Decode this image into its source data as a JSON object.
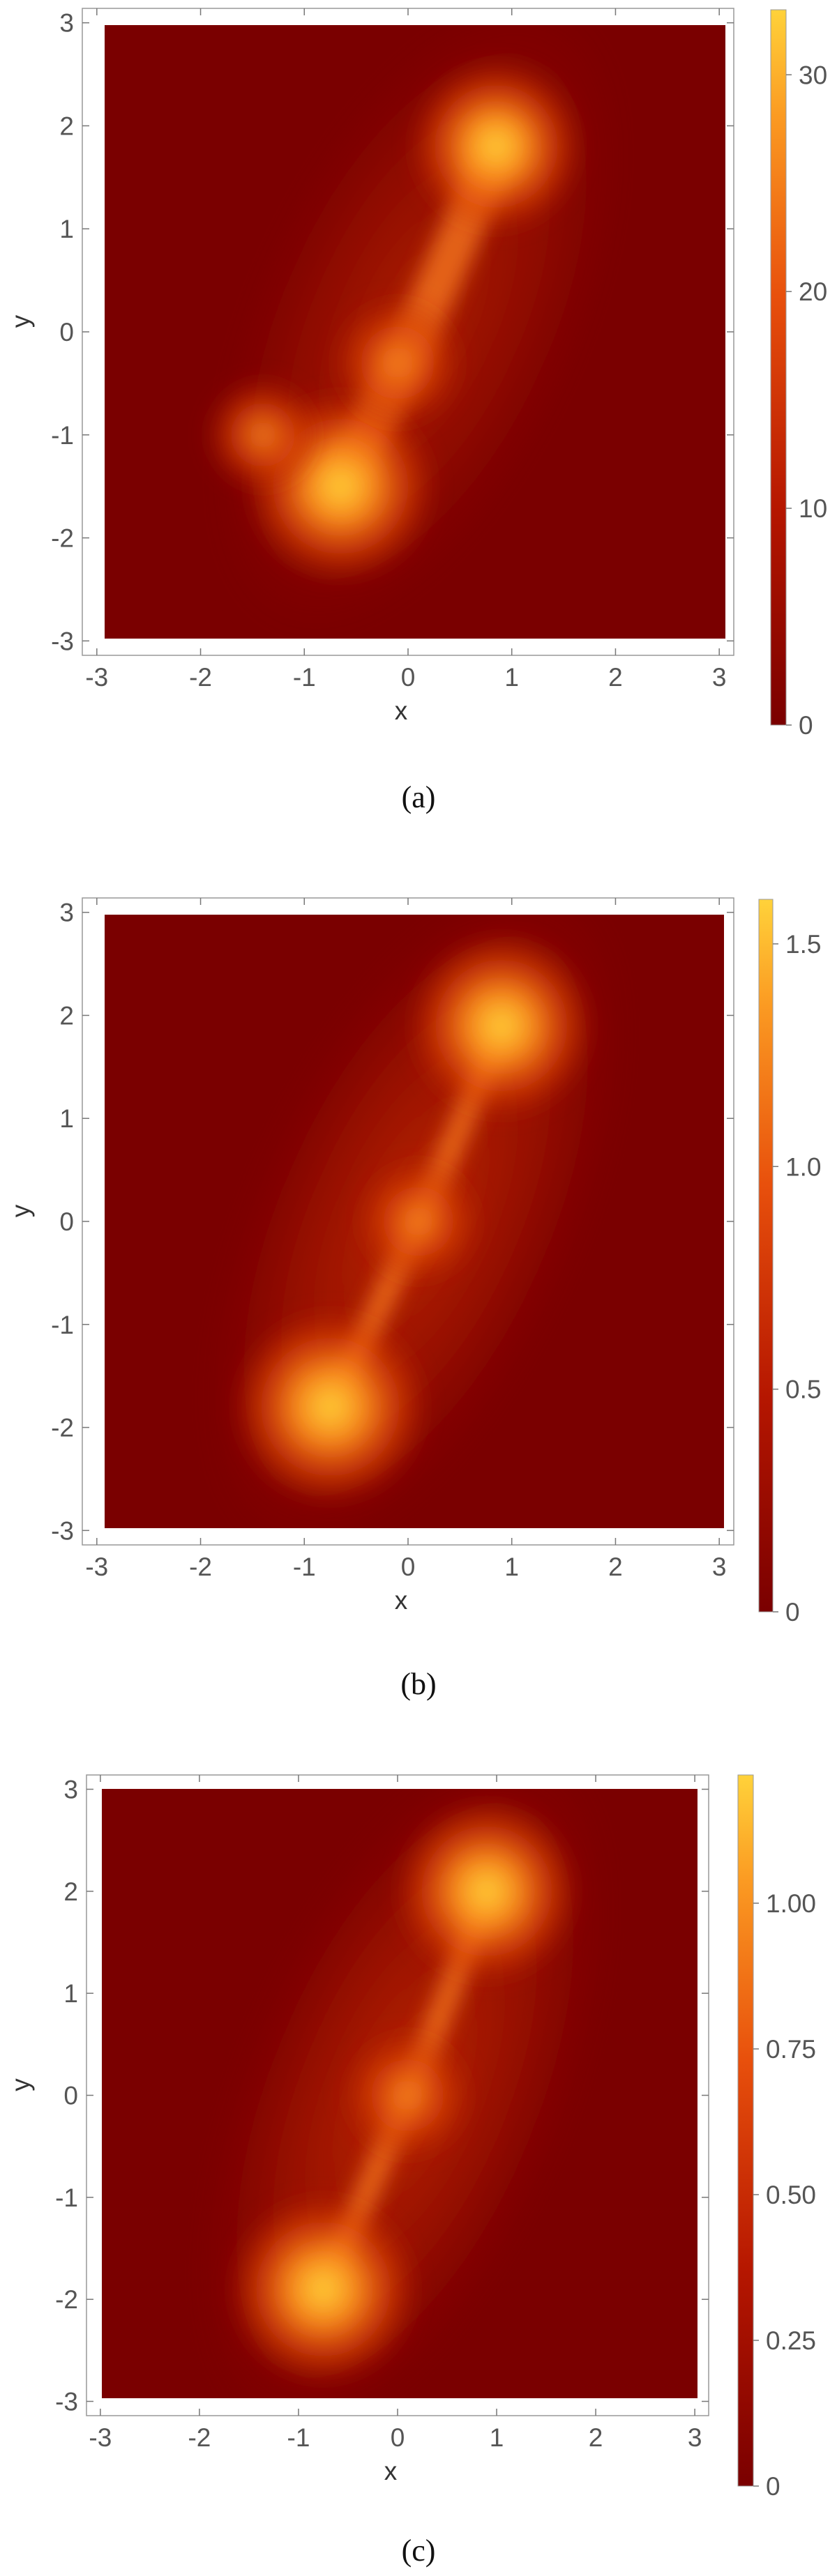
{
  "colors": {
    "background": "#7a0000",
    "colorbar_low": "#7a0000",
    "colorbar_mid": "#e0440a",
    "colorbar_high": "#ffd23a"
  },
  "chart_data": [
    {
      "type": "heatmap",
      "caption": "(a)",
      "xlabel": "x",
      "ylabel": "y",
      "xlim": [
        -3.14,
        3.14
      ],
      "ylim": [
        -3.14,
        3.14
      ],
      "xticks": [
        "-3",
        "-2",
        "-1",
        "0",
        "1",
        "2",
        "3"
      ],
      "yticks": [
        "3",
        "2",
        "1",
        "0",
        "-1",
        "-2",
        "-3"
      ],
      "colorbar": {
        "min": 0,
        "max": 33,
        "ticks": [
          "30",
          "20",
          "10",
          "0"
        ]
      },
      "features": [
        {
          "kind": "blob",
          "x": -0.65,
          "y": -1.5,
          "value": 30
        },
        {
          "kind": "blob",
          "x": 0.85,
          "y": 1.8,
          "value": 26
        },
        {
          "kind": "blob",
          "x": -0.1,
          "y": -0.3,
          "value": 18
        },
        {
          "kind": "blob",
          "x": -1.4,
          "y": -1.0,
          "value": 14
        }
      ]
    },
    {
      "type": "heatmap",
      "caption": "(b)",
      "xlabel": "x",
      "ylabel": "y",
      "xlim": [
        -3.14,
        3.14
      ],
      "ylim": [
        -3.14,
        3.14
      ],
      "xticks": [
        "-3",
        "-2",
        "-1",
        "0",
        "1",
        "2",
        "3"
      ],
      "yticks": [
        "3",
        "2",
        "1",
        "0",
        "-1",
        "-2",
        "-3"
      ],
      "colorbar": {
        "min": 0,
        "max": 1.6,
        "ticks": [
          "1.5",
          "1.0",
          "0.5",
          "0"
        ]
      },
      "features": [
        {
          "kind": "blob",
          "x": -0.75,
          "y": -1.8,
          "value": 1.5
        },
        {
          "kind": "blob",
          "x": 0.9,
          "y": 1.9,
          "value": 1.4
        },
        {
          "kind": "blob",
          "x": 0.1,
          "y": 0.0,
          "value": 0.8
        }
      ]
    },
    {
      "type": "heatmap",
      "caption": "(c)",
      "xlabel": "x",
      "ylabel": "y",
      "xlim": [
        -3.14,
        3.14
      ],
      "ylim": [
        -3.14,
        3.14
      ],
      "xticks": [
        "-3",
        "-2",
        "-1",
        "0",
        "1",
        "2",
        "3"
      ],
      "yticks": [
        "3",
        "2",
        "1",
        "0",
        "-1",
        "-2",
        "-3"
      ],
      "colorbar": {
        "min": 0,
        "max": 1.22,
        "ticks": [
          "1.00",
          "0.75",
          "0.50",
          "0.25",
          "0"
        ]
      },
      "features": [
        {
          "kind": "blob",
          "x": -0.75,
          "y": -1.9,
          "value": 1.1
        },
        {
          "kind": "blob",
          "x": 0.9,
          "y": 2.0,
          "value": 1.05
        },
        {
          "kind": "blob",
          "x": 0.1,
          "y": 0.0,
          "value": 0.65
        }
      ]
    }
  ]
}
